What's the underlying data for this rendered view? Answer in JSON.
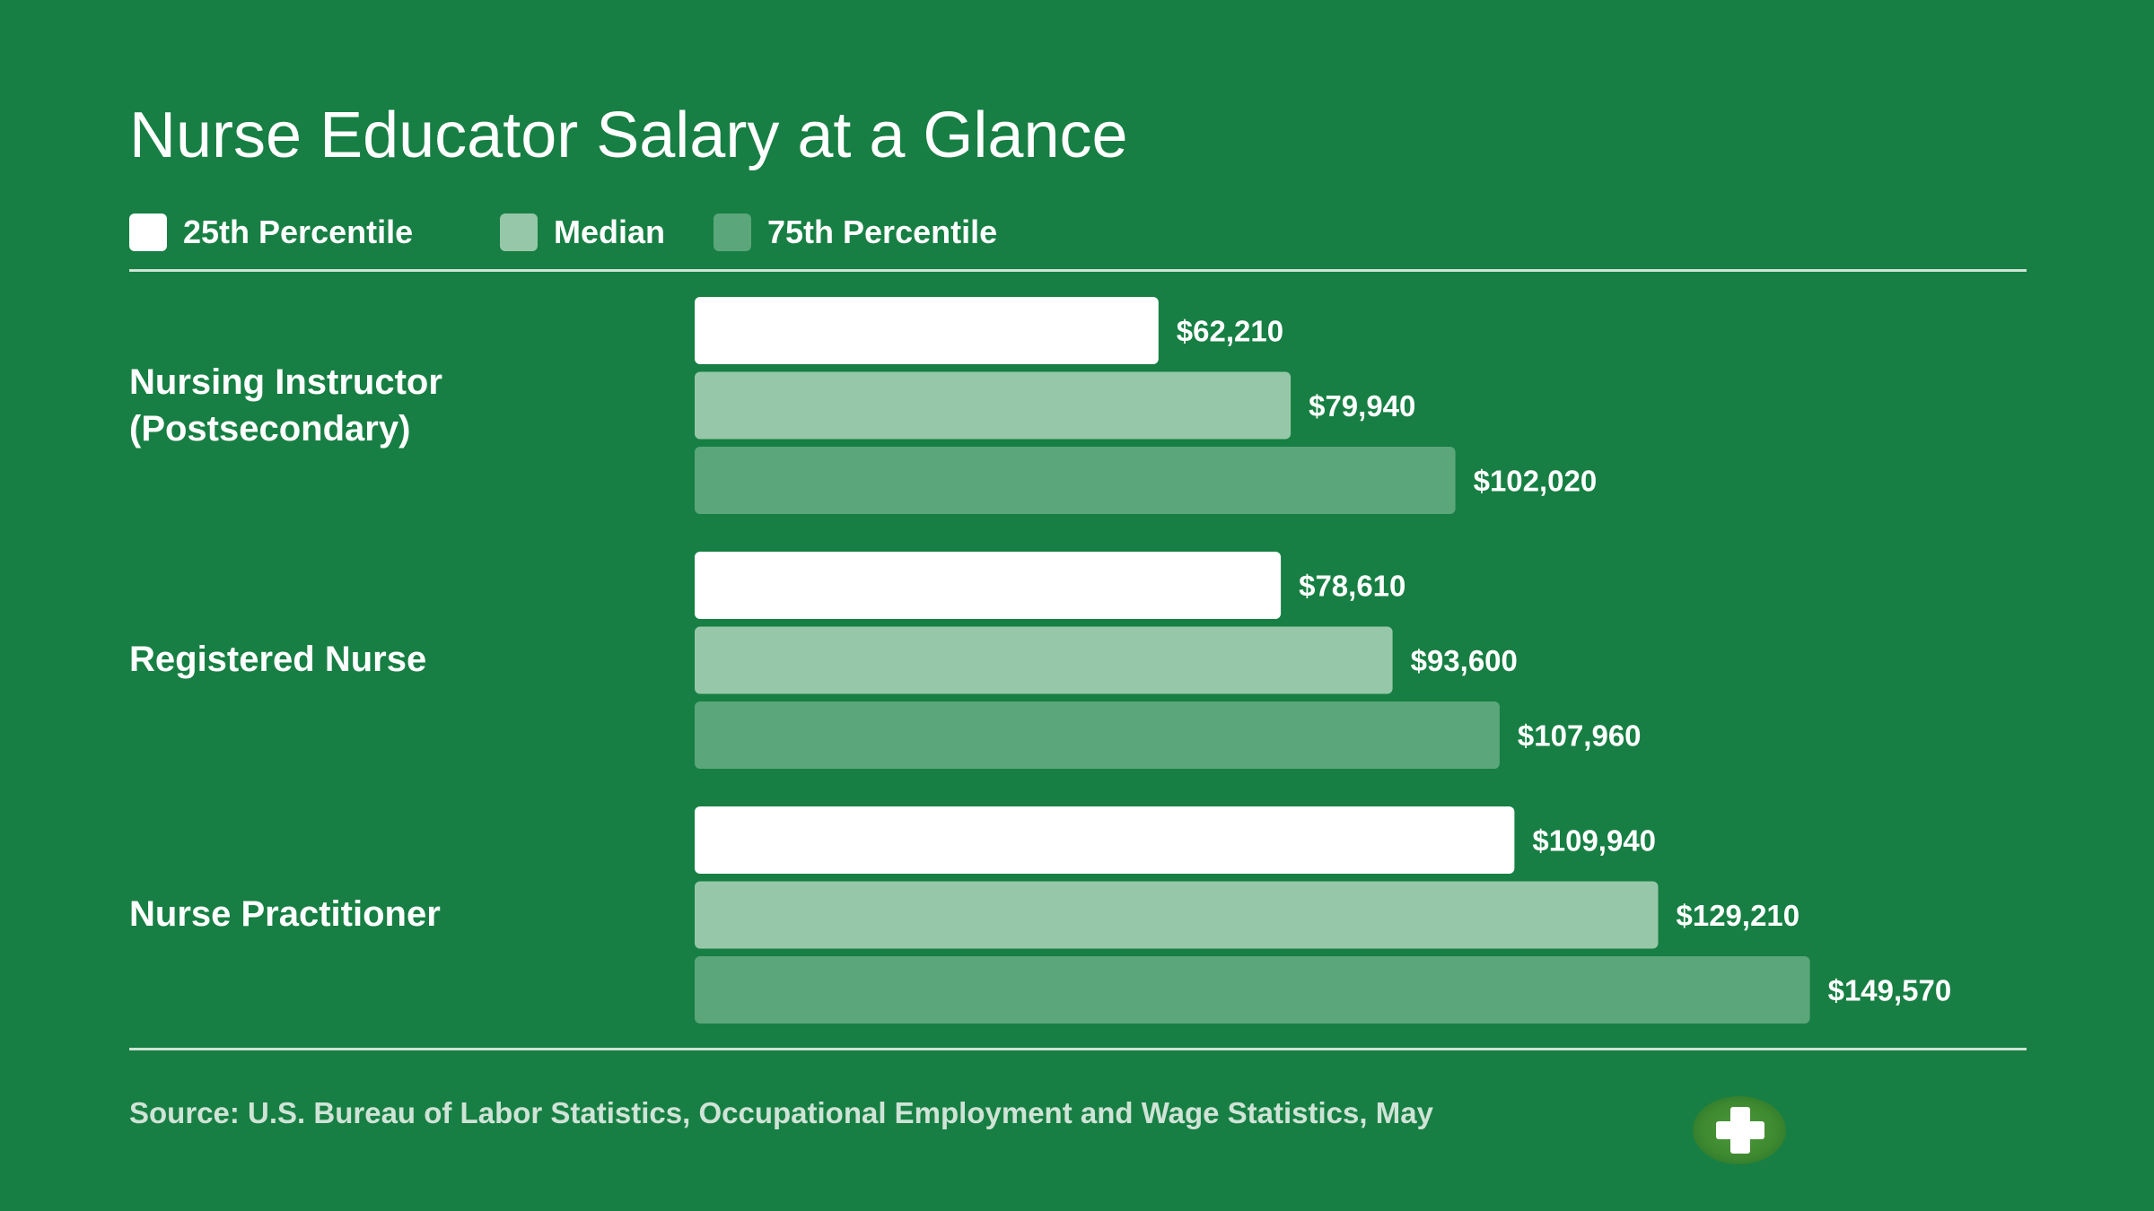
{
  "title": "Nurse Educator Salary at a Glance",
  "source": "Source: U.S. Bureau of Labor Statistics, Occupational Employment and Wage Statistics, May",
  "logo": {
    "icon": "medical-cross-icon"
  },
  "colors": {
    "background": "#177f43",
    "p25": "#ffffff",
    "median": "#97c7a9",
    "p75": "#5ca67b",
    "text": "#ffffff"
  },
  "legend": [
    {
      "label": "25th Percentile",
      "color": "#ffffff"
    },
    {
      "label": "Median",
      "color": "#97c7a9"
    },
    {
      "label": "75th Percentile",
      "color": "#5ca67b"
    }
  ],
  "chart_data": {
    "type": "bar",
    "orientation": "horizontal",
    "title": "Nurse Educator Salary at a Glance",
    "categories": [
      "Nursing Instructor\n(Postsecondary)",
      "Registered Nurse",
      "Nurse Practitioner"
    ],
    "series": [
      {
        "name": "25th Percentile",
        "values": [
          62210,
          78610,
          109940
        ],
        "labels": [
          "$62,210",
          "$78,610",
          "$109,940"
        ]
      },
      {
        "name": "Median",
        "values": [
          79940,
          93600,
          129210
        ],
        "labels": [
          "$79,940",
          "$93,600",
          "$129,210"
        ]
      },
      {
        "name": "75th Percentile",
        "values": [
          102020,
          107960,
          149570
        ],
        "labels": [
          "$102,020",
          "$107,960",
          "$149,570"
        ]
      }
    ],
    "legend_position": "top-left",
    "grid": false
  }
}
